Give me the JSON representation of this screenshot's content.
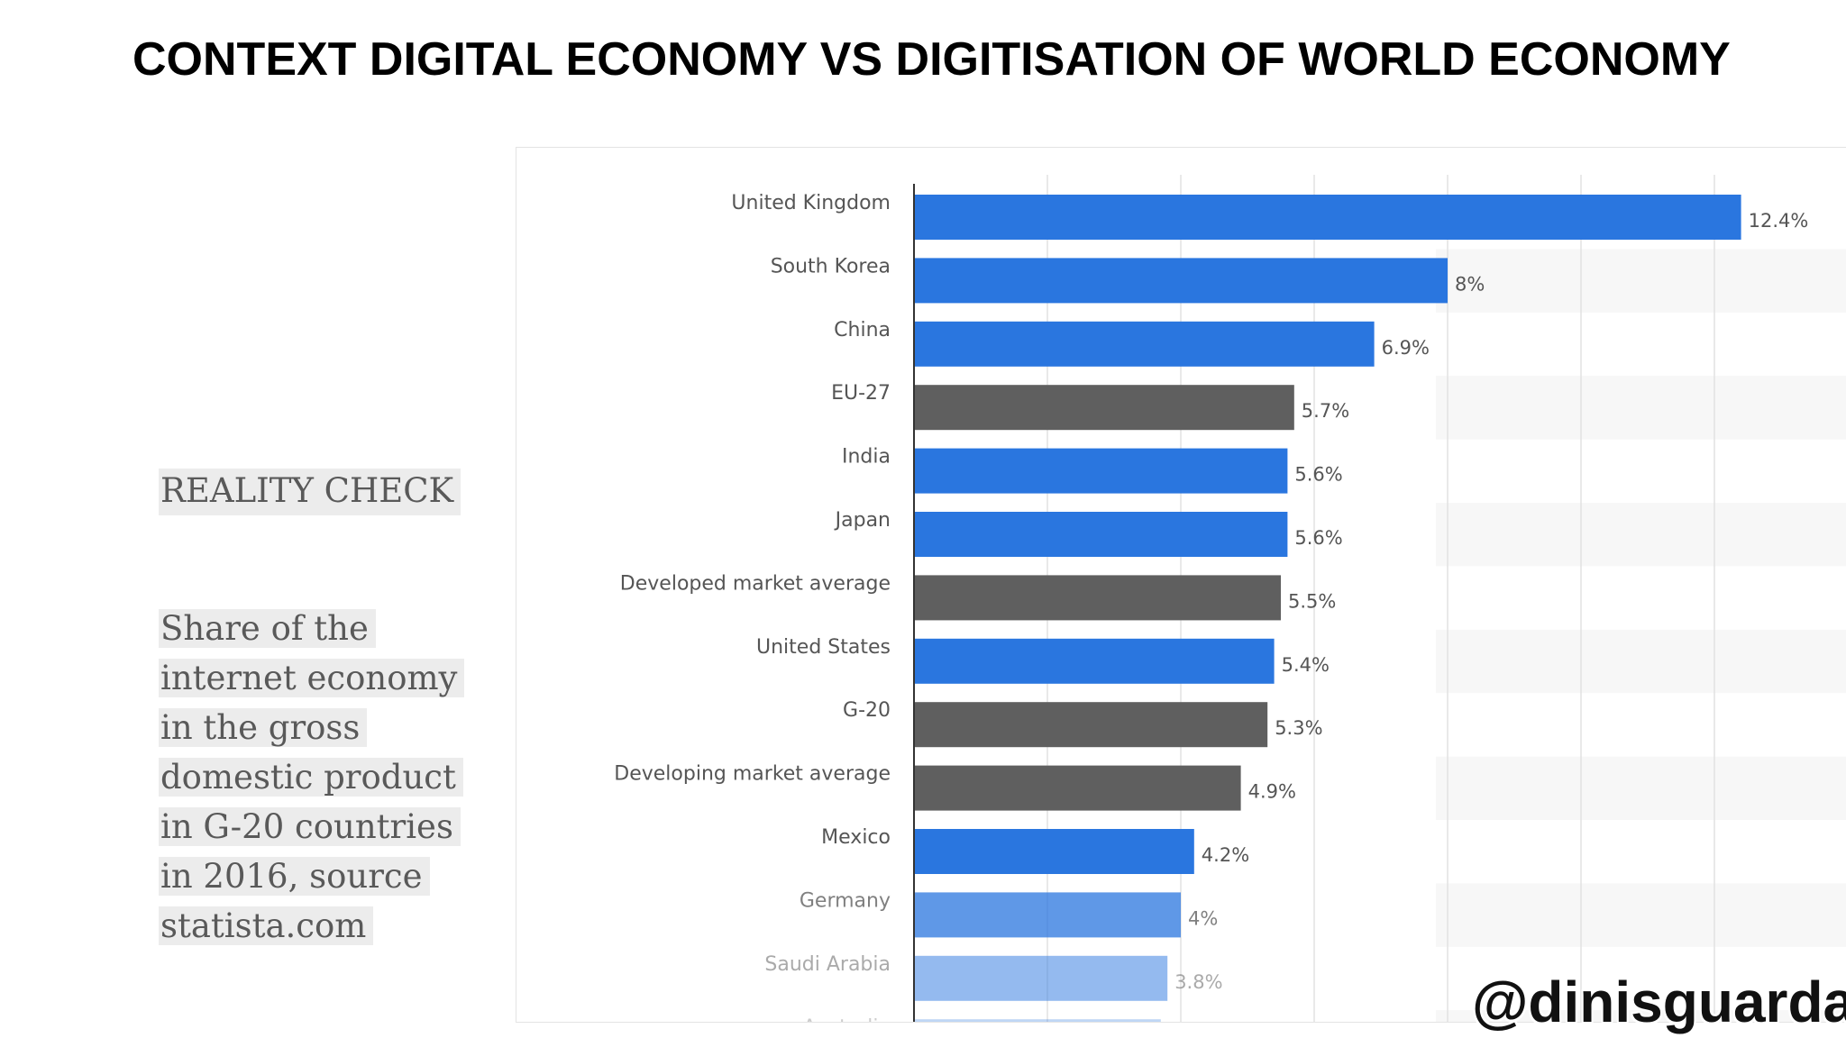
{
  "slide": {
    "title": "CONTEXT DIGITAL ECONOMY VS DIGITISATION OF WORLD ECONOMY",
    "reality_check": "REALITY CHECK",
    "description_lines": [
      "Share of the",
      "internet economy",
      "in the gross",
      "domestic product",
      "in G-20 countries",
      "in 2016, source",
      "statista.com"
    ],
    "watermark": "@dinisguarda"
  },
  "colors": {
    "country_bar": "#2a76df",
    "aggregate_bar": "#5f5f5f",
    "label_text": "#555555"
  },
  "chart_data": {
    "type": "bar",
    "orientation": "horizontal",
    "categories": [
      "United Kingdom",
      "South Korea",
      "China",
      "EU-27",
      "India",
      "Japan",
      "Developed market average",
      "United States",
      "G-20",
      "Developing market average",
      "Mexico",
      "Germany",
      "Saudi Arabia",
      "Australia"
    ],
    "values": [
      12.4,
      8,
      6.9,
      5.7,
      5.6,
      5.6,
      5.5,
      5.4,
      5.3,
      4.9,
      4.2,
      4,
      3.8,
      3.7
    ],
    "value_labels": [
      "12.4%",
      "8%",
      "6.9%",
      "5.7%",
      "5.6%",
      "5.6%",
      "5.5%",
      "5.4%",
      "5.3%",
      "4.9%",
      "4.2%",
      "4%",
      "3.8%",
      ""
    ],
    "bar_kind": [
      "country",
      "country",
      "country",
      "aggregate",
      "country",
      "country",
      "aggregate",
      "country",
      "aggregate",
      "aggregate",
      "country",
      "country",
      "country",
      "country"
    ],
    "unit": "%",
    "xlim": [
      0,
      14
    ],
    "grid": true,
    "legend": "none",
    "fade_bottom": true
  }
}
